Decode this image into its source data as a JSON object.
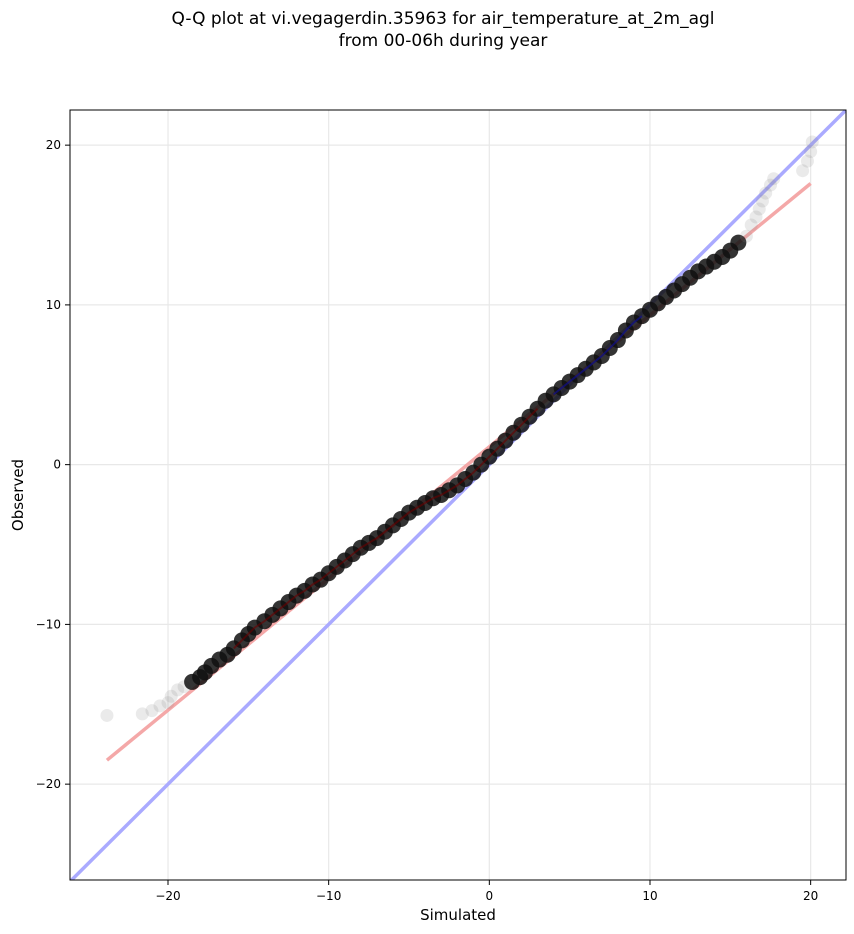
{
  "chart_data": {
    "type": "scatter",
    "title_lines": [
      "Q-Q plot at vi.vegagerdin.35963 for air_temperature_at_2m_agl",
      "from 00-06h during year"
    ],
    "xlabel": "Simulated",
    "ylabel": "Observed",
    "xlim": [
      -26.1,
      22.2
    ],
    "ylim": [
      -26.0,
      22.2
    ],
    "xticks": [
      -20,
      -10,
      0,
      10,
      20
    ],
    "yticks": [
      -20,
      -10,
      0,
      10,
      20
    ],
    "xtick_labels": [
      "−20",
      "−10",
      "0",
      "10",
      "20"
    ],
    "ytick_labels": [
      "−20",
      "−10",
      "0",
      "10",
      "20"
    ],
    "grid": true,
    "reference_line": {
      "slope": 1,
      "intercept": 0,
      "color": "#aaaaff"
    },
    "fit_line": {
      "points": [
        [
          -23.8,
          -18.5
        ],
        [
          20.0,
          17.6
        ]
      ],
      "color": "#f4a8a8"
    },
    "quantile_points": [
      [
        -23.8,
        -15.7
      ],
      [
        -21.6,
        -15.6
      ],
      [
        -21.0,
        -15.4
      ],
      [
        -20.5,
        -15.1
      ],
      [
        -20.0,
        -14.9
      ],
      [
        -19.8,
        -14.5
      ],
      [
        -19.4,
        -14.1
      ],
      [
        -19.0,
        -13.9
      ],
      [
        -18.5,
        -13.6
      ],
      [
        -18.0,
        -13.3
      ],
      [
        -17.7,
        -13.0
      ],
      [
        -17.3,
        -12.6
      ],
      [
        -16.8,
        -12.2
      ],
      [
        -16.3,
        -11.9
      ],
      [
        -15.9,
        -11.5
      ],
      [
        -15.4,
        -11.0
      ],
      [
        -15.0,
        -10.6
      ],
      [
        -14.6,
        -10.2
      ],
      [
        -14.0,
        -9.8
      ],
      [
        -13.5,
        -9.4
      ],
      [
        -13.0,
        -9.0
      ],
      [
        -12.5,
        -8.6
      ],
      [
        -12.0,
        -8.2
      ],
      [
        -11.5,
        -7.9
      ],
      [
        -11.0,
        -7.5
      ],
      [
        -10.5,
        -7.2
      ],
      [
        -10.0,
        -6.8
      ],
      [
        -9.5,
        -6.4
      ],
      [
        -9.0,
        -6.0
      ],
      [
        -8.5,
        -5.6
      ],
      [
        -8.0,
        -5.2
      ],
      [
        -7.5,
        -4.9
      ],
      [
        -7.0,
        -4.6
      ],
      [
        -6.5,
        -4.2
      ],
      [
        -6.0,
        -3.8
      ],
      [
        -5.5,
        -3.4
      ],
      [
        -5.0,
        -3.0
      ],
      [
        -4.5,
        -2.7
      ],
      [
        -4.0,
        -2.4
      ],
      [
        -3.5,
        -2.1
      ],
      [
        -3.0,
        -1.9
      ],
      [
        -2.5,
        -1.6
      ],
      [
        -2.0,
        -1.3
      ],
      [
        -1.5,
        -0.9
      ],
      [
        -1.0,
        -0.5
      ],
      [
        -0.5,
        0.0
      ],
      [
        0.0,
        0.5
      ],
      [
        0.5,
        1.0
      ],
      [
        1.0,
        1.5
      ],
      [
        1.5,
        2.0
      ],
      [
        2.0,
        2.5
      ],
      [
        2.5,
        3.0
      ],
      [
        3.0,
        3.5
      ],
      [
        3.5,
        4.0
      ],
      [
        4.0,
        4.4
      ],
      [
        4.5,
        4.8
      ],
      [
        5.0,
        5.2
      ],
      [
        5.5,
        5.6
      ],
      [
        6.0,
        6.0
      ],
      [
        6.5,
        6.4
      ],
      [
        7.0,
        6.8
      ],
      [
        7.5,
        7.3
      ],
      [
        8.0,
        7.8
      ],
      [
        8.5,
        8.4
      ],
      [
        9.0,
        8.9
      ],
      [
        9.5,
        9.3
      ],
      [
        10.0,
        9.7
      ],
      [
        10.5,
        10.1
      ],
      [
        11.0,
        10.5
      ],
      [
        11.5,
        10.9
      ],
      [
        12.0,
        11.3
      ],
      [
        12.5,
        11.7
      ],
      [
        13.0,
        12.1
      ],
      [
        13.5,
        12.4
      ],
      [
        14.0,
        12.7
      ],
      [
        14.5,
        13.0
      ],
      [
        15.0,
        13.4
      ],
      [
        15.5,
        13.9
      ],
      [
        16.0,
        14.3
      ],
      [
        16.3,
        15.0
      ],
      [
        16.6,
        15.5
      ],
      [
        16.8,
        16.0
      ],
      [
        17.0,
        16.5
      ],
      [
        17.2,
        17.0
      ],
      [
        17.5,
        17.5
      ],
      [
        17.7,
        17.9
      ],
      [
        19.5,
        18.4
      ],
      [
        19.8,
        19.0
      ],
      [
        20.0,
        19.6
      ],
      [
        20.1,
        20.2
      ]
    ]
  }
}
